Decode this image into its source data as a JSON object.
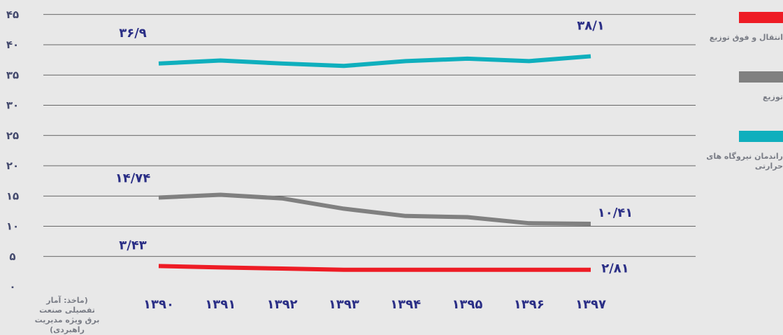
{
  "chart_data": {
    "type": "line",
    "x": [
      "۱۳۹۰",
      "۱۳۹۱",
      "۱۳۹۲",
      "۱۳۹۳",
      "۱۳۹۴",
      "۱۳۹۵",
      "۱۳۹۶",
      "۱۳۹۷"
    ],
    "x_values": [
      1390,
      1391,
      1392,
      1393,
      1394,
      1395,
      1396,
      1397
    ],
    "ylim": [
      0,
      45
    ],
    "yticks": [
      0,
      5,
      10,
      15,
      20,
      25,
      30,
      35,
      40,
      45
    ],
    "ytick_labels": [
      "۰",
      "۵",
      "۱۰",
      "۱۵",
      "۲۰",
      "۲۵",
      "۳۰",
      "۳۵",
      "۴۰",
      "۴۵"
    ],
    "grid": true,
    "legend_position": "right",
    "series": [
      {
        "name": "راندمان نیروگاه های حرارتی",
        "color": "#0fafbd",
        "values": [
          36.9,
          37.4,
          36.9,
          36.5,
          37.3,
          37.7,
          37.3,
          38.1
        ],
        "start_label": "۳۶/۹",
        "end_label": "۳۸/۱"
      },
      {
        "name": "توزیع",
        "color": "#808080",
        "values": [
          14.74,
          15.2,
          14.6,
          12.9,
          11.7,
          11.5,
          10.5,
          10.41
        ],
        "start_label": "۱۴/۷۴",
        "end_label": "۱۰/۴۱"
      },
      {
        "name": "انتقال و فوق توزیع",
        "color": "#ee1c25",
        "values": [
          3.43,
          3.2,
          3.0,
          2.81,
          2.81,
          2.81,
          2.81,
          2.81
        ],
        "start_label": "۳/۴۳",
        "end_label": "۲/۸۱"
      }
    ]
  },
  "source_note": "(ماخذ: آمار تفصیلی صنعت برق ویژه مدیریت راهبردی)"
}
